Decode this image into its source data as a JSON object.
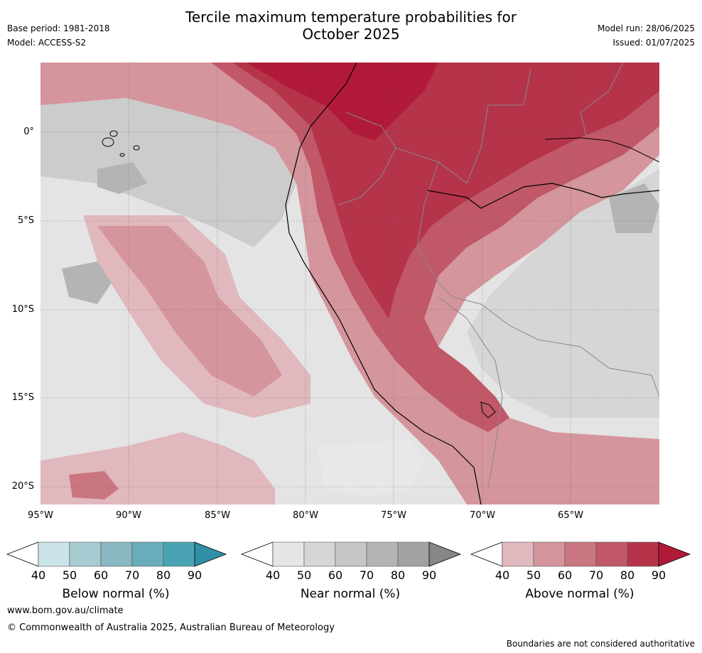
{
  "title_line1": "Tercile maximum temperature probabilities for",
  "title_line2": "October 2025",
  "meta_left": {
    "base_period": "Base period: 1981-2018",
    "model": "Model: ACCESS-S2"
  },
  "meta_right": {
    "model_run": "Model run: 28/06/2025",
    "issued": "Issued: 01/07/2025"
  },
  "lat_labels": [
    "0°",
    "5°S",
    "10°S",
    "15°S",
    "20°S"
  ],
  "lon_labels": [
    "95°W",
    "90°W",
    "85°W",
    "80°W",
    "75°W",
    "70°W",
    "65°W"
  ],
  "colorbars": [
    {
      "label": "Below normal (%)",
      "ticks": [
        "40",
        "50",
        "60",
        "70",
        "80",
        "90"
      ],
      "colors": [
        "#ffffff",
        "#c9e3e8",
        "#a8cbd1",
        "#89b8c3",
        "#6aadba",
        "#4aa3b2",
        "#2e8fa5"
      ]
    },
    {
      "label": "Near normal (%)",
      "ticks": [
        "40",
        "50",
        "60",
        "70",
        "80",
        "90"
      ],
      "colors": [
        "#ffffff",
        "#e6e6e6",
        "#d6d6d6",
        "#c6c6c6",
        "#b4b4b4",
        "#a2a2a2",
        "#868686"
      ]
    },
    {
      "label": "Above normal (%)",
      "ticks": [
        "40",
        "50",
        "60",
        "70",
        "80",
        "90"
      ],
      "colors": [
        "#ffffff",
        "#e0b8bd",
        "#d5959c",
        "#ca7680",
        "#c05868",
        "#b5344a",
        "#b01a38"
      ]
    }
  ],
  "footer": {
    "url": "www.bom.gov.au/climate",
    "copyright": "© Commonwealth of Australia 2025, Australian Bureau of Meteorology",
    "note": "Boundaries are not considered authoritative"
  }
}
